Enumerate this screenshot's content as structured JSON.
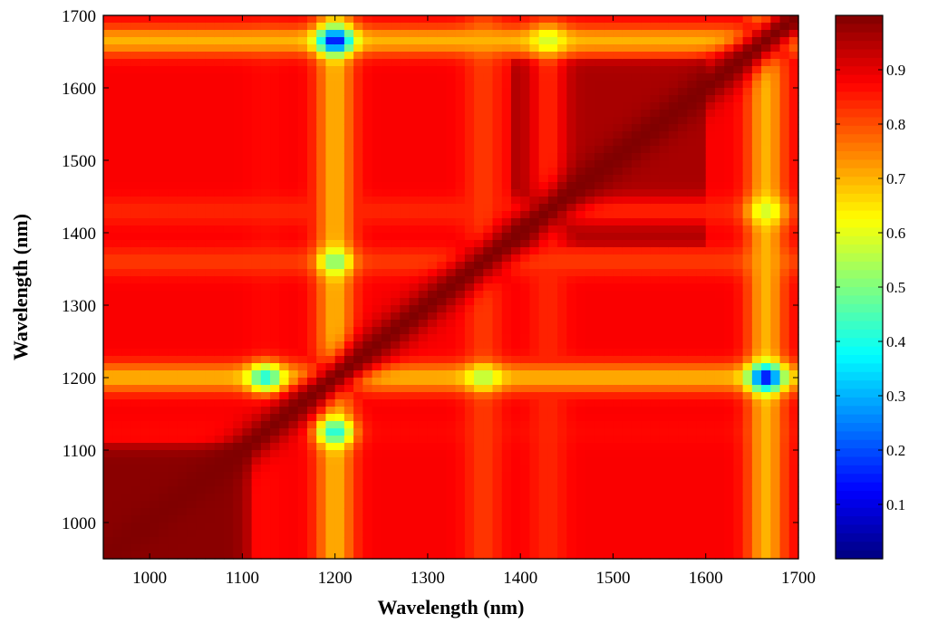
{
  "chart_data": {
    "type": "heatmap",
    "title": "",
    "xlabel": "Wavelength (nm)",
    "ylabel": "Wavelength (nm)",
    "xlim": [
      950,
      1700
    ],
    "ylim": [
      950,
      1700
    ],
    "xticks": [
      "1000",
      "1100",
      "1200",
      "1300",
      "1400",
      "1500",
      "1600",
      "1700"
    ],
    "yticks": [
      "1000",
      "1100",
      "1200",
      "1300",
      "1400",
      "1500",
      "1600",
      "1700"
    ],
    "colorbar": {
      "colormap": "jet",
      "range": [
        0,
        1
      ],
      "ticks": [
        "0.1",
        "0.2",
        "0.3",
        "0.4",
        "0.5",
        "0.6",
        "0.7",
        "0.8",
        "0.9"
      ]
    },
    "base_correlation": 0.88,
    "block_regions": [
      {
        "x": [
          950,
          1110
        ],
        "y": [
          950,
          1110
        ],
        "value": 0.99
      },
      {
        "x": [
          1390,
          1600
        ],
        "y": [
          1380,
          1640
        ],
        "value": 0.96
      }
    ],
    "diagonal_value": 1.0,
    "band_centers": [
      1125,
      1200,
      1360,
      1430,
      1665
    ],
    "band_values": [
      0.87,
      0.7,
      0.82,
      0.84,
      0.7
    ],
    "minima": [
      {
        "x": 1200,
        "y": 1665,
        "value": 0.12
      },
      {
        "x": 1665,
        "y": 1200,
        "value": 0.12
      },
      {
        "x": 1200,
        "y": 1125,
        "value": 0.4
      },
      {
        "x": 1125,
        "y": 1200,
        "value": 0.4
      },
      {
        "x": 1200,
        "y": 1360,
        "value": 0.5
      },
      {
        "x": 1360,
        "y": 1200,
        "value": 0.55
      },
      {
        "x": 1430,
        "y": 1665,
        "value": 0.58
      },
      {
        "x": 1665,
        "y": 1430,
        "value": 0.58
      }
    ]
  }
}
